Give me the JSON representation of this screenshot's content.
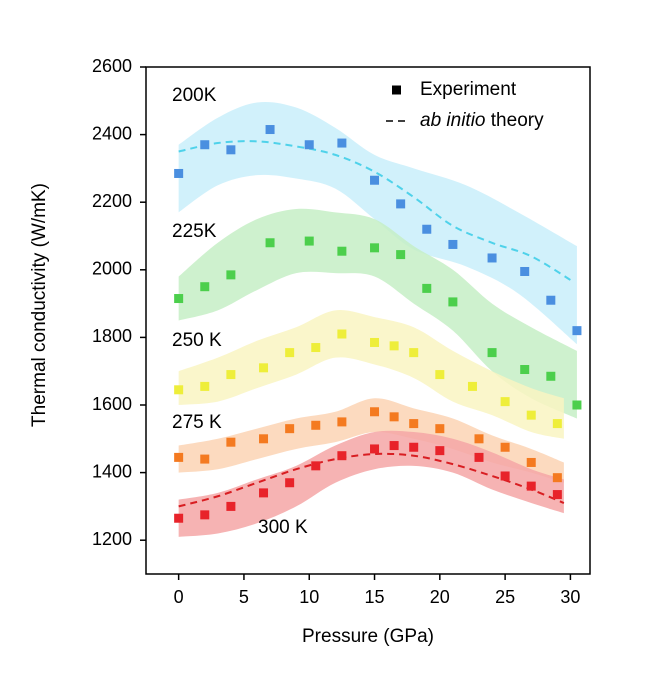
{
  "chart_data": {
    "type": "scatter",
    "x_label": "Pressure (GPa)",
    "y_label": "Thermal conductivity (W/mK)",
    "xlim": [
      -2.5,
      31.5
    ],
    "ylim": [
      1100,
      2600
    ],
    "xticks": [
      0,
      5,
      10,
      15,
      20,
      25,
      30
    ],
    "yticks": [
      1200,
      1400,
      1600,
      1800,
      2000,
      2200,
      2400,
      2600
    ],
    "legend": [
      {
        "label": "Experiment",
        "marker": "square"
      },
      {
        "label_italic": "ab initio",
        "label": "theory",
        "marker": "dashed"
      }
    ],
    "legend_position": "upper right",
    "series": [
      {
        "name": "200K",
        "color": "#4a8fe0",
        "band_color": "#c9eefa",
        "theory_color": "#4fd2ea",
        "x": [
          0,
          2,
          4,
          7,
          10,
          12.5,
          15,
          17,
          19,
          21,
          24,
          26.5,
          28.5,
          30.5
        ],
        "values": [
          2285,
          2370,
          2355,
          2415,
          2370,
          2375,
          2265,
          2195,
          2120,
          2075,
          2035,
          1995,
          1910,
          1820
        ],
        "band_x": [
          0,
          3,
          6,
          9,
          12,
          15,
          18,
          22,
          26,
          30.5
        ],
        "band_upper": [
          2370,
          2450,
          2495,
          2480,
          2420,
          2340,
          2300,
          2250,
          2170,
          2070
        ],
        "band_lower": [
          2170,
          2250,
          2280,
          2270,
          2240,
          2150,
          2060,
          2010,
          1930,
          1780
        ],
        "theory_x": [
          0,
          3,
          6,
          9,
          12,
          15,
          18,
          21,
          24,
          27,
          30
        ],
        "theory_values": [
          2350,
          2375,
          2380,
          2365,
          2340,
          2290,
          2215,
          2130,
          2080,
          2040,
          1970
        ]
      },
      {
        "name": "225K",
        "color": "#4ccf4c",
        "band_color": "#c6efc6",
        "x": [
          0,
          2,
          4,
          7,
          10,
          12.5,
          15,
          17,
          19,
          21,
          24,
          26.5,
          28.5,
          30.5
        ],
        "values": [
          1915,
          1950,
          1985,
          2080,
          2085,
          2055,
          2065,
          2045,
          1945,
          1905,
          1755,
          1705,
          1685,
          1600
        ],
        "band_x": [
          0,
          3,
          6,
          9,
          12,
          15,
          18,
          21,
          24,
          27,
          30.5
        ],
        "band_upper": [
          1980,
          2080,
          2150,
          2180,
          2170,
          2150,
          2070,
          2000,
          1900,
          1830,
          1760
        ],
        "band_lower": [
          1850,
          1880,
          1940,
          1990,
          1990,
          1980,
          1900,
          1820,
          1700,
          1620,
          1560
        ]
      },
      {
        "name": "250 K",
        "color": "#eeee3a",
        "band_color": "#f9f5c2",
        "x": [
          0,
          2,
          4,
          6.5,
          8.5,
          10.5,
          12.5,
          15,
          16.5,
          18,
          20,
          22.5,
          25,
          27,
          29
        ],
        "values": [
          1645,
          1655,
          1690,
          1710,
          1755,
          1770,
          1810,
          1785,
          1775,
          1755,
          1690,
          1655,
          1610,
          1570,
          1545
        ],
        "band_x": [
          0,
          3,
          6,
          9,
          12,
          15,
          18,
          21,
          24,
          27,
          29.5
        ],
        "band_upper": [
          1700,
          1740,
          1790,
          1830,
          1880,
          1860,
          1830,
          1760,
          1700,
          1650,
          1620
        ],
        "band_lower": [
          1600,
          1610,
          1650,
          1690,
          1740,
          1720,
          1680,
          1610,
          1570,
          1520,
          1500
        ]
      },
      {
        "name": "275 K",
        "color": "#f47a20",
        "band_color": "#fbd3b4",
        "x": [
          0,
          2,
          4,
          6.5,
          8.5,
          10.5,
          12.5,
          15,
          16.5,
          18,
          20,
          23,
          25,
          27,
          29
        ],
        "values": [
          1445,
          1440,
          1490,
          1500,
          1530,
          1540,
          1550,
          1580,
          1565,
          1545,
          1530,
          1500,
          1475,
          1430,
          1385
        ],
        "band_x": [
          0,
          3,
          6,
          9,
          12,
          15,
          18,
          21,
          24,
          27,
          29.5
        ],
        "band_upper": [
          1480,
          1500,
          1530,
          1560,
          1580,
          1620,
          1590,
          1560,
          1510,
          1470,
          1430
        ],
        "band_lower": [
          1400,
          1410,
          1440,
          1470,
          1490,
          1520,
          1500,
          1470,
          1430,
          1400,
          1370
        ]
      },
      {
        "name": "300 K",
        "color": "#e8232a",
        "band_color": "#f4a6a6",
        "theory_color": "#d81e22",
        "x": [
          0,
          2,
          4,
          6.5,
          8.5,
          10.5,
          12.5,
          15,
          16.5,
          18,
          20,
          23,
          25,
          27,
          29
        ],
        "values": [
          1265,
          1275,
          1300,
          1340,
          1370,
          1420,
          1450,
          1470,
          1480,
          1475,
          1465,
          1445,
          1390,
          1360,
          1335
        ],
        "band_x": [
          0,
          3,
          6,
          9,
          12,
          15,
          18,
          21,
          24,
          27,
          29.5
        ],
        "band_upper": [
          1320,
          1340,
          1380,
          1420,
          1480,
          1520,
          1520,
          1500,
          1460,
          1410,
          1380
        ],
        "band_lower": [
          1210,
          1220,
          1250,
          1300,
          1370,
          1410,
          1420,
          1400,
          1350,
          1310,
          1280
        ],
        "theory_x": [
          0,
          3,
          6,
          9,
          12,
          15,
          18,
          21,
          24,
          27,
          29.5
        ],
        "theory_values": [
          1300,
          1330,
          1370,
          1410,
          1440,
          1455,
          1450,
          1425,
          1390,
          1350,
          1310
        ]
      }
    ]
  }
}
